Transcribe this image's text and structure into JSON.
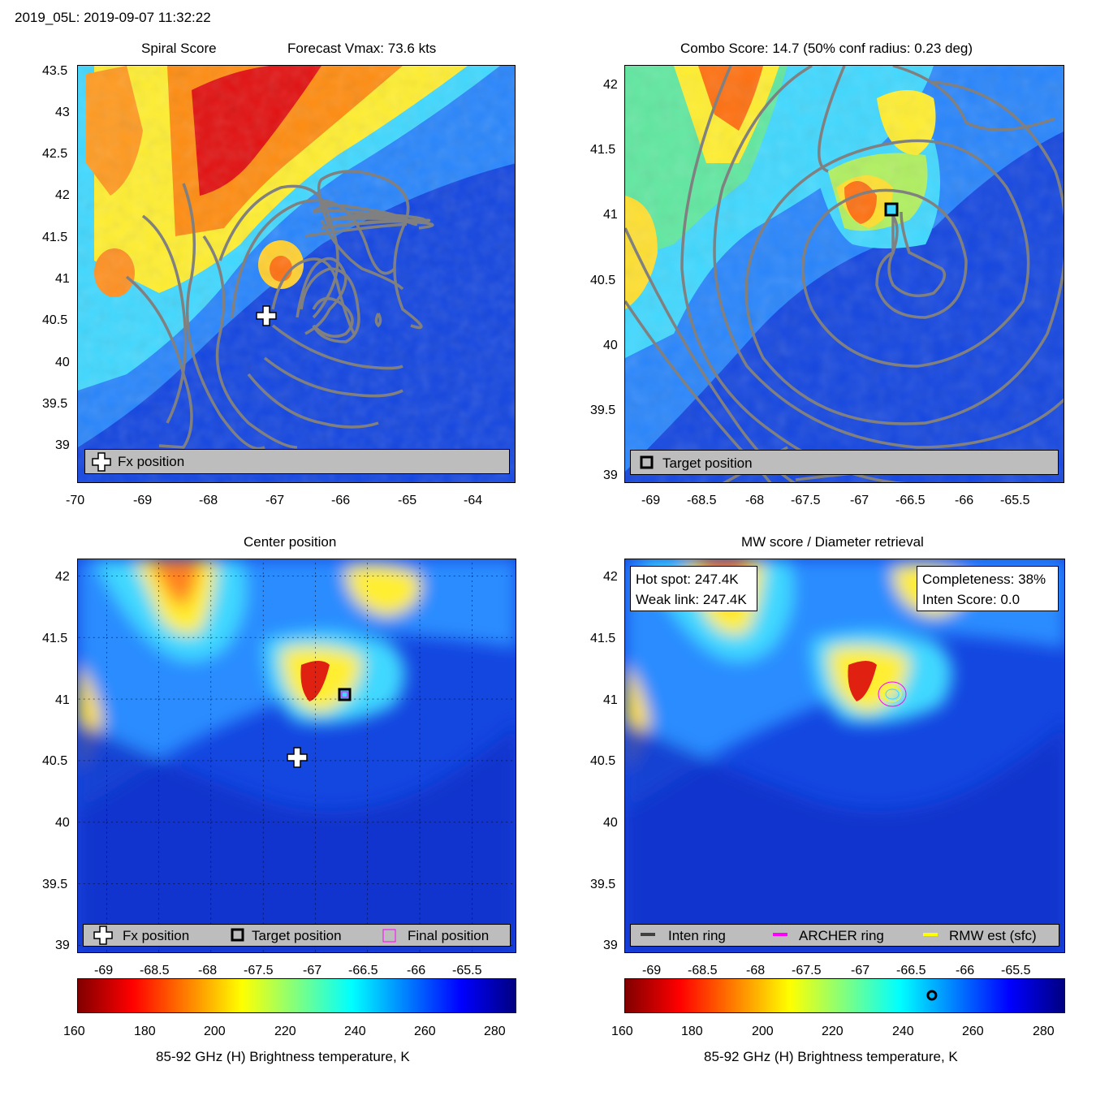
{
  "figure_title": "2019_05L: 2019-09-07 11:32:22",
  "panels": {
    "spiral": {
      "title_left": "Spiral Score",
      "title_right": "Forecast Vmax: 73.6 kts",
      "legend": [
        "Fx position"
      ]
    },
    "combo": {
      "title": "Combo Score: 14.7  (50% conf radius: 0.23 deg)",
      "legend": [
        "Target position"
      ]
    },
    "center": {
      "title": "Center position",
      "legend": [
        "Fx position",
        "Target position",
        "Final position"
      ]
    },
    "mw": {
      "title": "MW score / Diameter retrieval",
      "info_left": [
        "Hot spot: 247.4K",
        "Weak link: 247.4K"
      ],
      "info_right": [
        "Completeness: 38%",
        "Inten Score: 0.0"
      ],
      "legend": [
        "Inten ring",
        "ARCHER ring",
        "RMW est (sfc)"
      ]
    }
  },
  "colorbar": {
    "label": "85-92 GHz (H) Brightness temperature, K",
    "ticks": [
      "160",
      "180",
      "200",
      "220",
      "240",
      "260",
      "280"
    ],
    "marker_value": 247.4
  },
  "colors": {
    "contour": "#808080",
    "archer_ring": "#ff00ff",
    "rmw": "#ffff00",
    "inten_ring": "#404040",
    "legend_bg": "#bdbdbd"
  },
  "chart_data": [
    {
      "type": "heatmap",
      "name_id": "spiral-score",
      "xlim": [
        -70,
        -63.5
      ],
      "ylim": [
        38.6,
        43.55
      ],
      "xticks": [
        "-70",
        "-69",
        "-68",
        "-67",
        "-66",
        "-65",
        "-64"
      ],
      "yticks": [
        "39",
        "39.5",
        "40",
        "40.5",
        "41",
        "41.5",
        "42",
        "42.5",
        "43",
        "43.5"
      ],
      "markers": [
        {
          "kind": "fx-position",
          "lon": -67.15,
          "lat": 40.55
        }
      ]
    },
    {
      "type": "heatmap",
      "name_id": "combo-score",
      "xlim": [
        -69.25,
        -65.05
      ],
      "ylim": [
        38.95,
        42.1
      ],
      "xticks": [
        "-69",
        "-68.5",
        "-68",
        "-67.5",
        "-67",
        "-66.5",
        "-66",
        "-65.5"
      ],
      "yticks": [
        "39",
        "39.5",
        "40",
        "40.5",
        "41",
        "41.5",
        "42"
      ],
      "markers": [
        {
          "kind": "target-position",
          "lon": -66.72,
          "lat": 41.05
        }
      ]
    },
    {
      "type": "heatmap",
      "name_id": "center-position",
      "xlim": [
        -69.27,
        -65.06
      ],
      "ylim": [
        38.94,
        42.15
      ],
      "xticks": [
        "-69",
        "-68.5",
        "-68",
        "-67.5",
        "-67",
        "-66.5",
        "-66",
        "-65.5"
      ],
      "yticks": [
        "39",
        "39.5",
        "40",
        "40.5",
        "41",
        "41.5",
        "42"
      ],
      "markers": [
        {
          "kind": "fx-position",
          "lon": -67.15,
          "lat": 40.55
        },
        {
          "kind": "target-position",
          "lon": -66.72,
          "lat": 41.05
        },
        {
          "kind": "final-position",
          "lon": -66.72,
          "lat": 41.05
        }
      ]
    },
    {
      "type": "heatmap",
      "name_id": "mw-score",
      "xlim": [
        -69.27,
        -65.06
      ],
      "ylim": [
        38.94,
        42.15
      ],
      "xticks": [
        "-69",
        "-68.5",
        "-68",
        "-67.5",
        "-67",
        "-66.5",
        "-66",
        "-65.5"
      ],
      "yticks": [
        "39",
        "39.5",
        "40",
        "40.5",
        "41",
        "41.5",
        "42"
      ],
      "markers": [
        {
          "kind": "archer-ring",
          "lon": -66.63,
          "lat": 41.05
        }
      ]
    }
  ]
}
